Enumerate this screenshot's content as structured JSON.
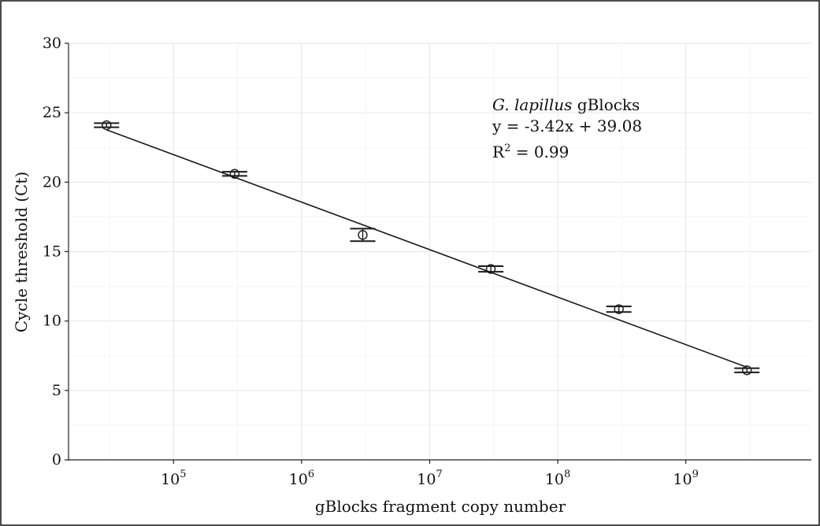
{
  "chart_data": {
    "type": "scatter",
    "xlabel": "gBlocks fragment copy number",
    "ylabel": "Cycle threshold (Ct)",
    "x_scale": "log10",
    "xlim_log10": [
      4.18,
      9.98
    ],
    "ylim": [
      0,
      30
    ],
    "grid": true,
    "x_ticks": [
      {
        "base": "10",
        "exp": "5",
        "log10": 5
      },
      {
        "base": "10",
        "exp": "6",
        "log10": 6
      },
      {
        "base": "10",
        "exp": "7",
        "log10": 7
      },
      {
        "base": "10",
        "exp": "8",
        "log10": 8
      },
      {
        "base": "10",
        "exp": "9",
        "log10": 9
      }
    ],
    "y_ticks": [
      0,
      5,
      10,
      15,
      20,
      25,
      30
    ],
    "x_tick_labels": [
      "10",
      "10",
      "10",
      "10",
      "10"
    ],
    "x_tick_exponents": [
      "5",
      "6",
      "7",
      "8",
      "9"
    ],
    "y_tick_labels": [
      "0",
      "5",
      "10",
      "15",
      "20",
      "25",
      "30"
    ],
    "points": [
      {
        "x": 30000,
        "y": 24.1,
        "y_err": 0.15
      },
      {
        "x": 300000,
        "y": 20.6,
        "y_err": 0.15
      },
      {
        "x": 3000000,
        "y": 16.2,
        "y_err": 0.45
      },
      {
        "x": 30000000,
        "y": 13.75,
        "y_err": 0.2
      },
      {
        "x": 300000000,
        "y": 10.85,
        "y_err": 0.2
      },
      {
        "x": 3000000000,
        "y": 6.45,
        "y_err": 0.15
      }
    ],
    "fit": {
      "slope": -3.42,
      "intercept": 39.08
    },
    "annotation": {
      "species": "G. lapillus",
      "suffix": " gBlocks",
      "equation": "y = -3.42x + 39.08",
      "r_prefix": "R",
      "r_sup": "2",
      "r_suffix": " = 0.99"
    }
  }
}
